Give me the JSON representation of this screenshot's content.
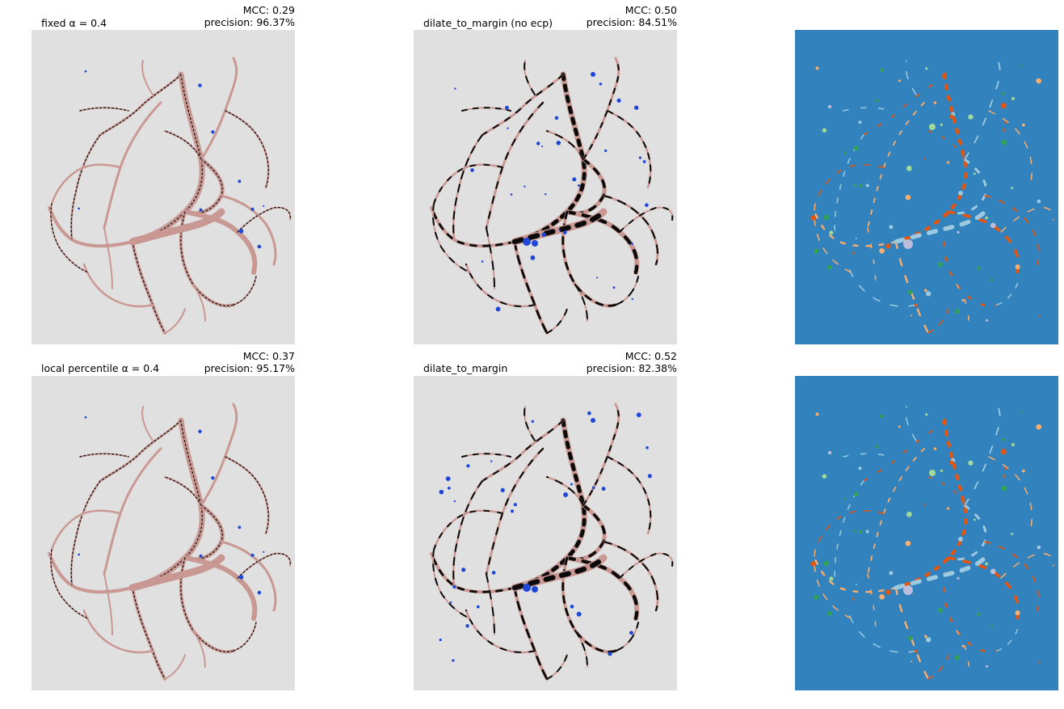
{
  "colors": {
    "background_panel": "#e0e0e0",
    "vessel": "#c99892",
    "false_negative": "#0a0a0a",
    "false_positive": "#1f47d6",
    "overlay_background": "#3182bd",
    "overlay_orange": "#e6550d",
    "overlay_light_orange": "#fdae6b",
    "overlay_light_blue": "#9ecae1",
    "overlay_green": "#31a354",
    "overlay_light_green": "#a1d99b",
    "overlay_purple": "#bcbddc"
  },
  "panels": {
    "r1c1": {
      "label": "fixed α = 0.4",
      "mcc": "MCC: 0.29",
      "precision": "precision: 96.37%"
    },
    "r1c2": {
      "label": "dilate_to_margin (no ecp)",
      "mcc": "MCC: 0.50",
      "precision": "precision: 84.51%"
    },
    "r2c1": {
      "label": "local percentile α = 0.4",
      "mcc": "MCC: 0.37",
      "precision": "precision: 95.17%"
    },
    "r2c2": {
      "label": "dilate_to_margin",
      "mcc": "MCC: 0.52",
      "precision": "precision: 82.38%"
    }
  }
}
